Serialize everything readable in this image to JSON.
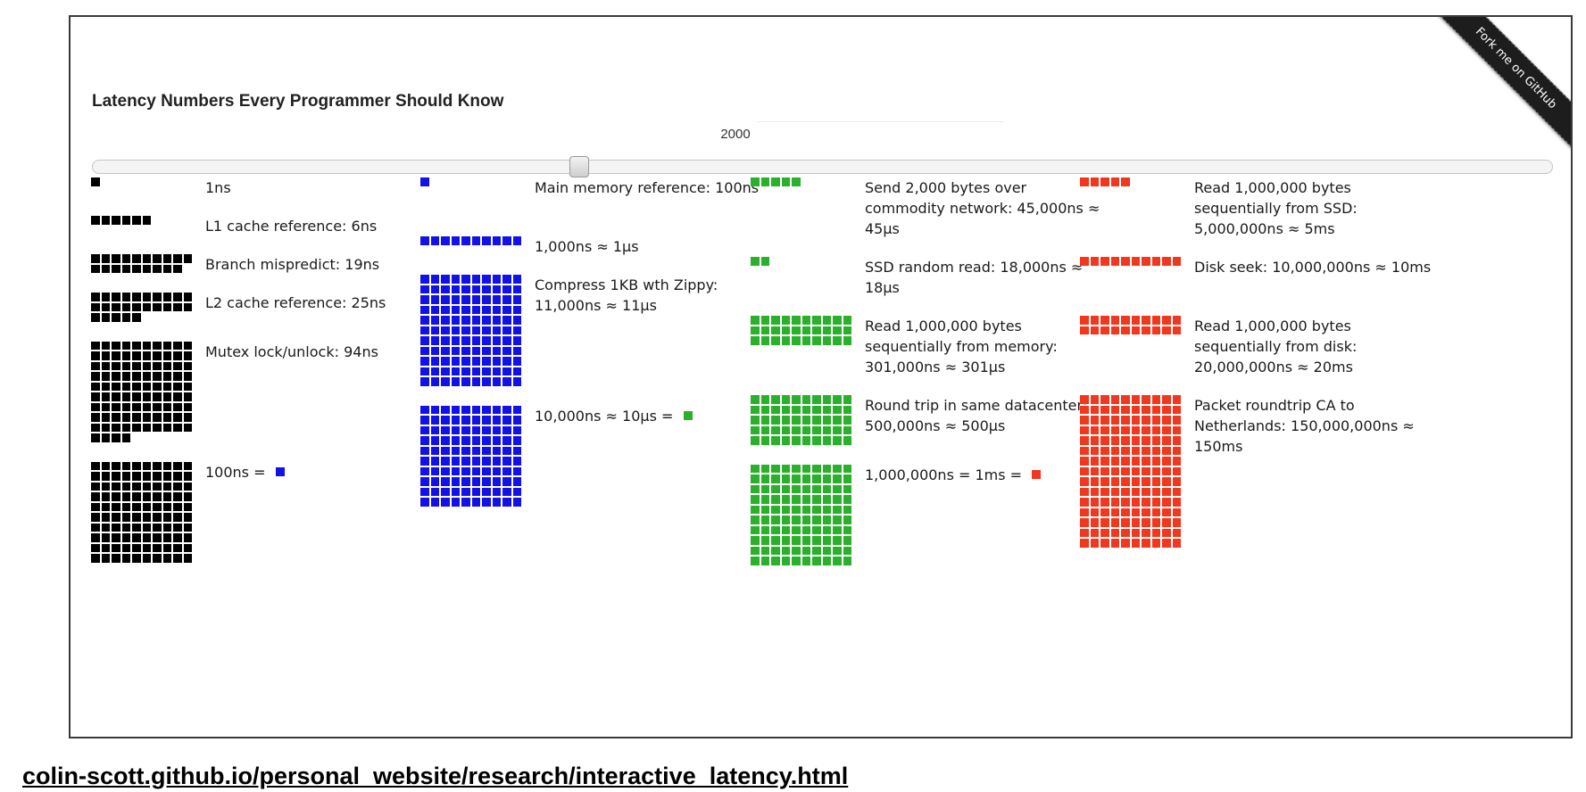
{
  "title": "Latency Numbers Every Programmer Should Know",
  "year": "2000",
  "year_value": 2000,
  "year_range": [
    1990,
    2020
  ],
  "ribbon": "Fork me on GitHub",
  "url": "colin-scott.github.io/personal_website/research/interactive_latency.html",
  "colors": {
    "black": "#000000",
    "blue": "#1212e8",
    "green": "#2bb02b",
    "red": "#f2371f"
  },
  "columns": [
    [
      {
        "label": "1ns",
        "color": "black",
        "count": 1
      },
      {
        "label": "L1 cache reference: 6ns",
        "color": "black",
        "count": 6
      },
      {
        "label": "Branch mispredict: 19ns",
        "color": "black",
        "count": 19
      },
      {
        "label": "L2 cache reference: 25ns",
        "color": "black",
        "count": 25
      },
      {
        "label": "Mutex lock/unlock: 94ns",
        "color": "black",
        "count": 94
      },
      {
        "label": "100ns = ",
        "color": "black",
        "count": 100,
        "unit_color": "blue"
      }
    ],
    [
      {
        "label": "Main memory reference: 100ns",
        "color": "blue",
        "count": 1
      },
      {
        "label": "1,000ns ≈ 1μs",
        "color": "blue",
        "count": 10
      },
      {
        "label": "Compress 1KB wth Zippy: 11,000ns ≈ 11μs",
        "color": "blue",
        "count": 110
      },
      {
        "label": "10,000ns ≈ 10μs = ",
        "color": "blue",
        "count": 100,
        "unit_color": "green"
      }
    ],
    [
      {
        "label": "Send 2,000 bytes over commodity network: 45,000ns ≈ 45μs",
        "color": "green",
        "count": 5
      },
      {
        "label": "SSD random read: 18,000ns ≈ 18μs",
        "color": "green",
        "count": 2
      },
      {
        "label": "Read 1,000,000 bytes sequentially from memory: 301,000ns ≈ 301μs",
        "color": "green",
        "count": 30
      },
      {
        "label": "Round trip in same datacenter: 500,000ns ≈ 500μs",
        "color": "green",
        "count": 50
      },
      {
        "label": "1,000,000ns = 1ms = ",
        "color": "green",
        "count": 100,
        "unit_color": "red"
      }
    ],
    [
      {
        "label": "Read 1,000,000 bytes sequentially from SSD: 5,000,000ns ≈ 5ms",
        "color": "red",
        "count": 5
      },
      {
        "label": "Disk seek: 10,000,000ns ≈ 10ms",
        "color": "red",
        "count": 10
      },
      {
        "label": "Read 1,000,000 bytes sequentially from disk: 20,000,000ns ≈ 20ms",
        "color": "red",
        "count": 20
      },
      {
        "label": "Packet roundtrip CA to Netherlands: 150,000,000ns ≈ 150ms",
        "color": "red",
        "count": 150
      }
    ]
  ]
}
